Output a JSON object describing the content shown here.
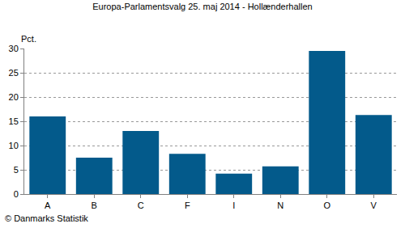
{
  "chart_data": {
    "type": "bar",
    "title": "Europa-Parlamentsvalg 25. maj 2014 - Hollænderhallen",
    "ylabel": "Pct.",
    "categories": [
      "A",
      "B",
      "C",
      "F",
      "I",
      "N",
      "O",
      "V"
    ],
    "values": [
      16.0,
      7.5,
      13.0,
      8.3,
      4.2,
      5.7,
      29.5,
      16.3
    ],
    "color": "#035a8b",
    "ylim": [
      0,
      30
    ],
    "yticks": [
      0,
      5,
      10,
      15,
      20,
      25,
      30
    ],
    "grid": true,
    "annotations": [
      "© Danmarks Statistik"
    ]
  }
}
